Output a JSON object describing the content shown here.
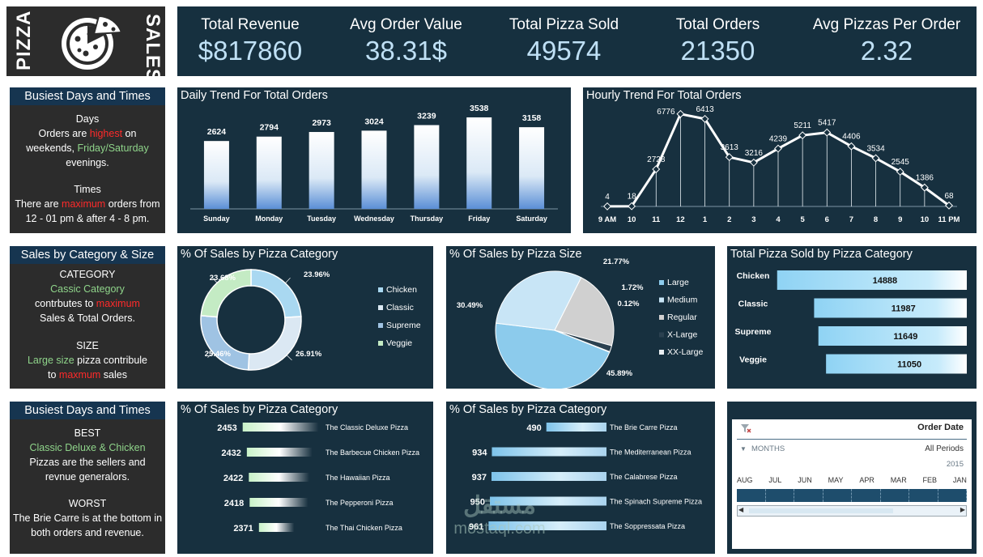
{
  "logo": {
    "left_text": "PIZZA",
    "right_text": "SALES"
  },
  "kpis": [
    {
      "label": "Total Revenue",
      "value": "$817860"
    },
    {
      "label": "Avg Order Value",
      "value": "38.31$"
    },
    {
      "label": "Total Pizza Sold",
      "value": "49574"
    },
    {
      "label": "Total Orders",
      "value": "21350"
    },
    {
      "label": "Avg Pizzas Per Order",
      "value": "2.32"
    }
  ],
  "side1": {
    "title": "Busiest Days and Times",
    "days_head": "Days",
    "l1a": "Orders are ",
    "l1b": "highest",
    "l1c": " on",
    "l2a": "weekends, ",
    "l2b": "Friday/Saturday",
    "l3": "evenings.",
    "times_head": "Times",
    "l4a": "There are ",
    "l4b": "maximum",
    "l4c": " orders from",
    "l5": "12 - 01 pm & after 4 - 8 pm."
  },
  "side2": {
    "title": "Sales by Category & Size",
    "cat_head": "CATEGORY",
    "l1": "Cassic Category",
    "l2a": "contrbutes to ",
    "l2b": "maximum",
    "l3": "Sales & Total Orders.",
    "size_head": "SIZE",
    "l4a": "Large size",
    "l4b": " pizza contribule",
    "l5a": "to ",
    "l5b": "maxmum",
    "l5c": " sales"
  },
  "side3": {
    "title": "Busiest Days and Times",
    "best_head": "BEST",
    "l1": "Classic Deluxe & Chicken",
    "l2": "Pizzas are the sellers and",
    "l3": "revnue generalors.",
    "worst_head": "WORST",
    "l4": "The Brie Carre is at the bottom in",
    "l5": "both orders and revenue."
  },
  "chart_data": [
    {
      "id": "daily",
      "type": "bar",
      "title": "Daily Trend For Total Orders",
      "categories": [
        "Sunday",
        "Monday",
        "Tuesday",
        "Wednesday",
        "Thursday",
        "Friday",
        "Saturday"
      ],
      "values": [
        2624,
        2794,
        2973,
        3024,
        3239,
        3538,
        3158
      ],
      "ylim": [
        0,
        3600
      ]
    },
    {
      "id": "hourly",
      "type": "line",
      "title": "Hourly Trend For Total Orders",
      "categories": [
        "9 AM",
        "10",
        "11",
        "12",
        "1",
        "2",
        "3",
        "4",
        "5",
        "6",
        "7",
        "8",
        "9",
        "10",
        "11 PM"
      ],
      "values": [
        4,
        18,
        2728,
        6776,
        6413,
        3613,
        3216,
        4239,
        5211,
        5417,
        4406,
        3534,
        2545,
        1386,
        68
      ],
      "ylim": [
        0,
        7000
      ]
    },
    {
      "id": "category_pct",
      "type": "pie",
      "title": "% Of Sales by Pizza Category",
      "labels": [
        "Chicken",
        "Classic",
        "Supreme",
        "Veggie"
      ],
      "values": [
        23.96,
        26.91,
        25.46,
        23.68
      ],
      "value_labels": [
        "23.96%",
        "26.91%",
        "25.46%",
        "23.68%"
      ],
      "colors": [
        "#a9d8f1",
        "#dbe8f3",
        "#9fc3e3",
        "#c4ebc4"
      ]
    },
    {
      "id": "size_pct",
      "type": "pie",
      "title": "% Of Sales by Pizza Size",
      "labels": [
        "Large",
        "Medium",
        "Regular",
        "X-Large",
        "XX-Large"
      ],
      "values": [
        45.89,
        30.49,
        21.77,
        1.72,
        0.12
      ],
      "value_labels": [
        "45.89%",
        "30.49%",
        "21.77%",
        "1.72%",
        "0.12%"
      ],
      "colors": [
        "#8ccbec",
        "#c8e5f6",
        "#d0d0d0",
        "#2b4150",
        "#e9eef2"
      ]
    },
    {
      "id": "category_qty",
      "type": "bar",
      "title": "Total Pizza Sold by Pizza Category",
      "categories": [
        "Chicken",
        "Classic",
        "Supreme",
        "Veggie"
      ],
      "values": [
        14888,
        11987,
        11649,
        11050
      ],
      "xlim": [
        0,
        15000
      ]
    },
    {
      "id": "top5",
      "type": "bar",
      "title": "% Of Sales by Pizza Category",
      "categories": [
        "The Classic Deluxe Pizza",
        "The Barbecue Chicken Pizza",
        "The Hawaiian Pizza",
        "The Pepperoni Pizza",
        "The Thai Chicken Pizza"
      ],
      "values": [
        2453,
        2432,
        2422,
        2418,
        2371
      ],
      "xlim": [
        2300,
        2460
      ]
    },
    {
      "id": "bottom5",
      "type": "bar",
      "title": "% Of Sales by Pizza Category",
      "categories": [
        "The Brie Carre Pizza",
        "The Mediterranean Pizza",
        "The Calabrese Pizza",
        "The Spinach Supreme Pizza",
        "The Soppressata Pizza"
      ],
      "values": [
        490,
        934,
        937,
        950,
        961
      ],
      "xlim": [
        0,
        970
      ]
    }
  ],
  "slicer": {
    "title": "Order Date",
    "level": "MONTHS",
    "period": "All Periods",
    "year": "2015",
    "months": [
      "AUG",
      "JUL",
      "JUN",
      "MAY",
      "APR",
      "MAR",
      "FEB",
      "JAN"
    ]
  },
  "watermark": {
    "arabic": "مستقل",
    "latin": "mostaql.com"
  }
}
